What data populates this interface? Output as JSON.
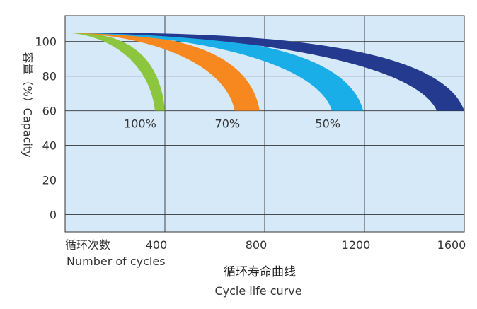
{
  "chart_data": {
    "type": "area",
    "title": "循环寿命曲线",
    "subtitle": "Cycle life curve",
    "xlabel_cn": "循环次数",
    "xlabel": "Number of cycles",
    "ylabel": "容量（%）Capacity",
    "xlim": [
      0,
      1600
    ],
    "ylim": [
      -10,
      115
    ],
    "x_ticks": [
      "400",
      "800",
      "1200",
      "1600"
    ],
    "y_ticks": [
      "0",
      "20",
      "40",
      "60",
      "80",
      "100"
    ],
    "grid": true,
    "background_color": "#d6e9f9",
    "series": [
      {
        "name": "100%",
        "color": "#8cc63f",
        "start": [
          0,
          105
        ],
        "end_inner": [
          360,
          60
        ],
        "end_outer": [
          400,
          60
        ]
      },
      {
        "name": "70%",
        "color": "#f7881f",
        "start": [
          0,
          105
        ],
        "end_inner": [
          680,
          60
        ],
        "end_outer": [
          780,
          60
        ]
      },
      {
        "name": "50%",
        "color": "#1aaee9",
        "start": [
          0,
          105
        ],
        "end_inner": [
          1070,
          60
        ],
        "end_outer": [
          1195,
          60
        ]
      },
      {
        "name": "",
        "color": "#233a8e",
        "start": [
          0,
          105
        ],
        "end_inner": [
          1490,
          60
        ],
        "end_outer": [
          1600,
          60
        ]
      }
    ]
  }
}
